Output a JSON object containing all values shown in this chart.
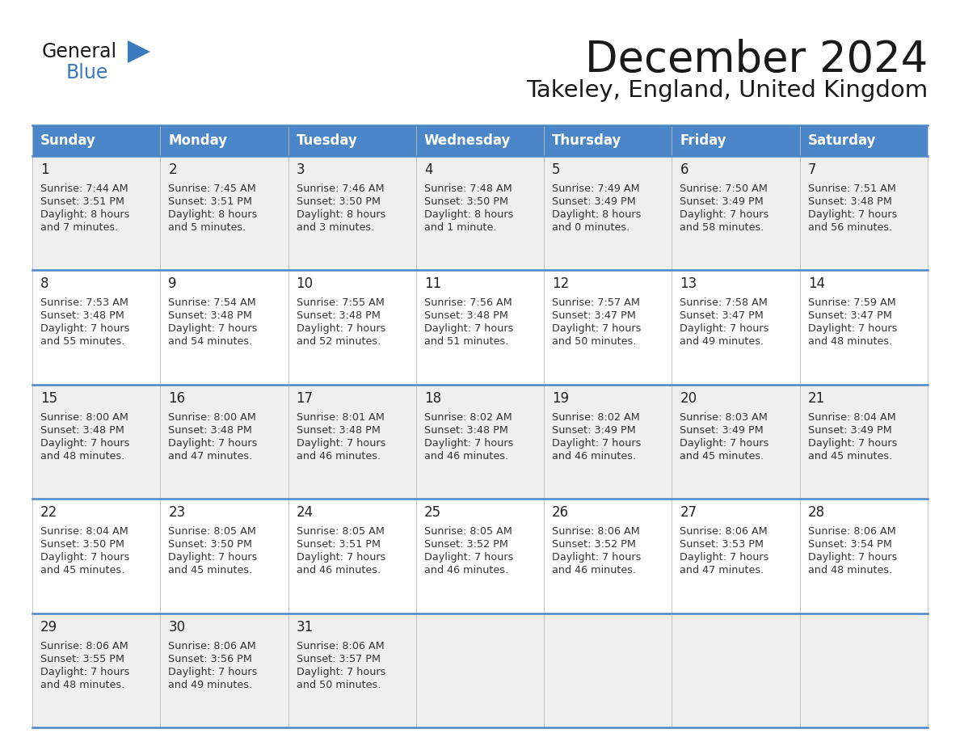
{
  "title": "December 2024",
  "subtitle": "Takeley, England, United Kingdom",
  "header_color": "#4a86c8",
  "header_text_color": "#ffffff",
  "cell_bg_odd": "#efefef",
  "cell_bg_even": "#ffffff",
  "border_color": "#4a86c8",
  "text_color": "#333333",
  "day_names": [
    "Sunday",
    "Monday",
    "Tuesday",
    "Wednesday",
    "Thursday",
    "Friday",
    "Saturday"
  ],
  "weeks": [
    [
      {
        "day": 1,
        "sunrise": "7:44 AM",
        "sunset": "3:51 PM",
        "daylight": "8 hours",
        "daylight2": "and 7 minutes."
      },
      {
        "day": 2,
        "sunrise": "7:45 AM",
        "sunset": "3:51 PM",
        "daylight": "8 hours",
        "daylight2": "and 5 minutes."
      },
      {
        "day": 3,
        "sunrise": "7:46 AM",
        "sunset": "3:50 PM",
        "daylight": "8 hours",
        "daylight2": "and 3 minutes."
      },
      {
        "day": 4,
        "sunrise": "7:48 AM",
        "sunset": "3:50 PM",
        "daylight": "8 hours",
        "daylight2": "and 1 minute."
      },
      {
        "day": 5,
        "sunrise": "7:49 AM",
        "sunset": "3:49 PM",
        "daylight": "8 hours",
        "daylight2": "and 0 minutes."
      },
      {
        "day": 6,
        "sunrise": "7:50 AM",
        "sunset": "3:49 PM",
        "daylight": "7 hours",
        "daylight2": "and 58 minutes."
      },
      {
        "day": 7,
        "sunrise": "7:51 AM",
        "sunset": "3:48 PM",
        "daylight": "7 hours",
        "daylight2": "and 56 minutes."
      }
    ],
    [
      {
        "day": 8,
        "sunrise": "7:53 AM",
        "sunset": "3:48 PM",
        "daylight": "7 hours",
        "daylight2": "and 55 minutes."
      },
      {
        "day": 9,
        "sunrise": "7:54 AM",
        "sunset": "3:48 PM",
        "daylight": "7 hours",
        "daylight2": "and 54 minutes."
      },
      {
        "day": 10,
        "sunrise": "7:55 AM",
        "sunset": "3:48 PM",
        "daylight": "7 hours",
        "daylight2": "and 52 minutes."
      },
      {
        "day": 11,
        "sunrise": "7:56 AM",
        "sunset": "3:48 PM",
        "daylight": "7 hours",
        "daylight2": "and 51 minutes."
      },
      {
        "day": 12,
        "sunrise": "7:57 AM",
        "sunset": "3:47 PM",
        "daylight": "7 hours",
        "daylight2": "and 50 minutes."
      },
      {
        "day": 13,
        "sunrise": "7:58 AM",
        "sunset": "3:47 PM",
        "daylight": "7 hours",
        "daylight2": "and 49 minutes."
      },
      {
        "day": 14,
        "sunrise": "7:59 AM",
        "sunset": "3:47 PM",
        "daylight": "7 hours",
        "daylight2": "and 48 minutes."
      }
    ],
    [
      {
        "day": 15,
        "sunrise": "8:00 AM",
        "sunset": "3:48 PM",
        "daylight": "7 hours",
        "daylight2": "and 48 minutes."
      },
      {
        "day": 16,
        "sunrise": "8:00 AM",
        "sunset": "3:48 PM",
        "daylight": "7 hours",
        "daylight2": "and 47 minutes."
      },
      {
        "day": 17,
        "sunrise": "8:01 AM",
        "sunset": "3:48 PM",
        "daylight": "7 hours",
        "daylight2": "and 46 minutes."
      },
      {
        "day": 18,
        "sunrise": "8:02 AM",
        "sunset": "3:48 PM",
        "daylight": "7 hours",
        "daylight2": "and 46 minutes."
      },
      {
        "day": 19,
        "sunrise": "8:02 AM",
        "sunset": "3:49 PM",
        "daylight": "7 hours",
        "daylight2": "and 46 minutes."
      },
      {
        "day": 20,
        "sunrise": "8:03 AM",
        "sunset": "3:49 PM",
        "daylight": "7 hours",
        "daylight2": "and 45 minutes."
      },
      {
        "day": 21,
        "sunrise": "8:04 AM",
        "sunset": "3:49 PM",
        "daylight": "7 hours",
        "daylight2": "and 45 minutes."
      }
    ],
    [
      {
        "day": 22,
        "sunrise": "8:04 AM",
        "sunset": "3:50 PM",
        "daylight": "7 hours",
        "daylight2": "and 45 minutes."
      },
      {
        "day": 23,
        "sunrise": "8:05 AM",
        "sunset": "3:50 PM",
        "daylight": "7 hours",
        "daylight2": "and 45 minutes."
      },
      {
        "day": 24,
        "sunrise": "8:05 AM",
        "sunset": "3:51 PM",
        "daylight": "7 hours",
        "daylight2": "and 46 minutes."
      },
      {
        "day": 25,
        "sunrise": "8:05 AM",
        "sunset": "3:52 PM",
        "daylight": "7 hours",
        "daylight2": "and 46 minutes."
      },
      {
        "day": 26,
        "sunrise": "8:06 AM",
        "sunset": "3:52 PM",
        "daylight": "7 hours",
        "daylight2": "and 46 minutes."
      },
      {
        "day": 27,
        "sunrise": "8:06 AM",
        "sunset": "3:53 PM",
        "daylight": "7 hours",
        "daylight2": "and 47 minutes."
      },
      {
        "day": 28,
        "sunrise": "8:06 AM",
        "sunset": "3:54 PM",
        "daylight": "7 hours",
        "daylight2": "and 48 minutes."
      }
    ],
    [
      {
        "day": 29,
        "sunrise": "8:06 AM",
        "sunset": "3:55 PM",
        "daylight": "7 hours",
        "daylight2": "and 48 minutes."
      },
      {
        "day": 30,
        "sunrise": "8:06 AM",
        "sunset": "3:56 PM",
        "daylight": "7 hours",
        "daylight2": "and 49 minutes."
      },
      {
        "day": 31,
        "sunrise": "8:06 AM",
        "sunset": "3:57 PM",
        "daylight": "7 hours",
        "daylight2": "and 50 minutes."
      },
      null,
      null,
      null,
      null
    ]
  ]
}
